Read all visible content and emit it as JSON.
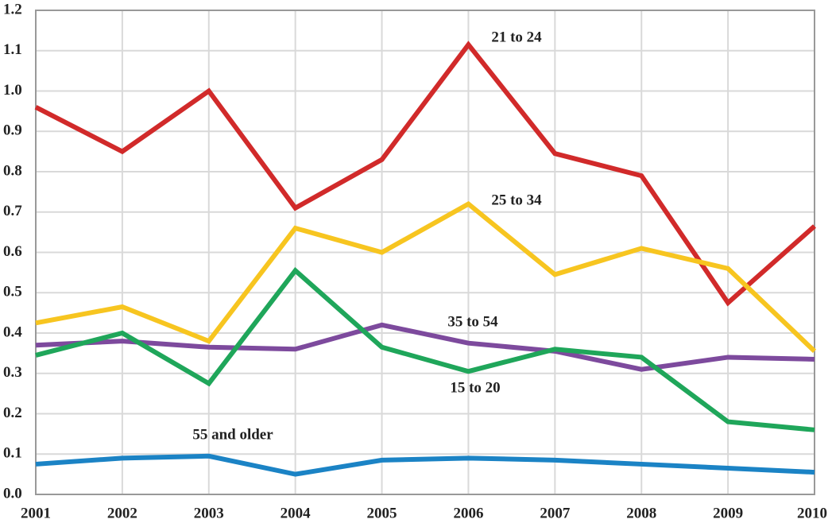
{
  "chart_data": {
    "type": "line",
    "x": [
      2001,
      2002,
      2003,
      2004,
      2005,
      2006,
      2007,
      2008,
      2009,
      2010
    ],
    "xlim": [
      2001,
      2010
    ],
    "xticks": [
      2001,
      2002,
      2003,
      2004,
      2005,
      2006,
      2007,
      2008,
      2009,
      2010
    ],
    "ylim": [
      0,
      1.2
    ],
    "yticks": [
      {
        "value": 0,
        "label": "0.0"
      },
      0.1,
      0.2,
      0.3,
      0.4,
      0.5,
      0.6,
      0.7,
      0.8,
      0.9,
      {
        "value": 1,
        "label": "1.0"
      },
      1.1,
      1.2
    ],
    "grid": true,
    "series": [
      {
        "name": "21 to 24",
        "color": "#d12a2a",
        "values": [
          0.96,
          0.85,
          1.0,
          0.71,
          0.83,
          1.115,
          0.845,
          0.79,
          0.475,
          0.665
        ]
      },
      {
        "name": "25 to 34",
        "color": "#f7c520",
        "values": [
          0.425,
          0.465,
          0.38,
          0.66,
          0.6,
          0.72,
          0.545,
          0.61,
          0.56,
          0.355
        ]
      },
      {
        "name": "35 to 54",
        "color": "#7d4a9d",
        "values": [
          0.37,
          0.38,
          0.365,
          0.36,
          0.42,
          0.375,
          0.355,
          0.31,
          0.34,
          0.335
        ]
      },
      {
        "name": "15 to 20",
        "color": "#1fa65a",
        "values": [
          0.345,
          0.4,
          0.275,
          0.555,
          0.365,
          0.305,
          0.36,
          0.34,
          0.18,
          0.16
        ]
      },
      {
        "name": "55 and older",
        "color": "#1b83c5",
        "values": [
          0.075,
          0.09,
          0.095,
          0.05,
          0.085,
          0.09,
          0.085,
          0.075,
          0.065,
          0.055
        ]
      }
    ]
  }
}
